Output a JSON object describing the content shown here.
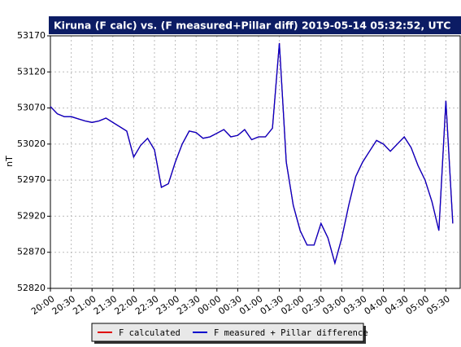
{
  "chart_data": {
    "type": "line",
    "title": "Kiruna (F calc) vs. (F measured+Pillar diff) 2019-05-14 05:32:52, UTC",
    "y_label": "nT",
    "categories": [
      "20:00",
      null,
      null,
      "20:30",
      null,
      null,
      "21:00",
      null,
      null,
      "21:30",
      null,
      null,
      "22:00",
      null,
      null,
      "22:30",
      null,
      null,
      "23:00",
      null,
      null,
      "23:30",
      null,
      null,
      "00:00",
      null,
      null,
      "00:30",
      null,
      null,
      "01:00",
      null,
      null,
      "01:30",
      null,
      null,
      "02:00",
      null,
      null,
      "02:30",
      null,
      null,
      "03:00",
      null,
      null,
      "03:30",
      null,
      null,
      "04:00",
      null,
      null,
      "04:30",
      null,
      null,
      "05:00",
      null,
      null,
      "05:30",
      null
    ],
    "series": [
      {
        "name": "F calculated",
        "color": "#e00000",
        "values": [
          53072,
          53062,
          53058,
          53058,
          53055,
          53052,
          53050,
          53052,
          53056,
          53050,
          53044,
          53038,
          53002,
          53018,
          53028,
          53012,
          52960,
          52965,
          52995,
          53020,
          53038,
          53036,
          53028,
          53030,
          53035,
          53040,
          53030,
          53032,
          53040,
          53026,
          53030,
          53030,
          53042,
          53160,
          52995,
          52935,
          52900,
          52880,
          52880,
          52910,
          52890,
          52855,
          52890,
          52935,
          52975,
          52995,
          53010,
          53025,
          53020,
          53010,
          53020,
          53030,
          53015,
          52990,
          52970,
          52940,
          52900,
          53080,
          52910
        ]
      },
      {
        "name": "F measured + Pillar difference",
        "color": "#0000cc",
        "values": [
          53072,
          53062,
          53058,
          53058,
          53055,
          53052,
          53050,
          53052,
          53056,
          53050,
          53044,
          53038,
          53002,
          53018,
          53028,
          53012,
          52960,
          52965,
          52995,
          53020,
          53038,
          53036,
          53028,
          53030,
          53035,
          53040,
          53030,
          53032,
          53040,
          53026,
          53030,
          53030,
          53042,
          53160,
          52995,
          52935,
          52900,
          52880,
          52880,
          52910,
          52890,
          52855,
          52890,
          52935,
          52975,
          52995,
          53010,
          53025,
          53020,
          53010,
          53020,
          53030,
          53015,
          52990,
          52970,
          52940,
          52900,
          53080,
          52910
        ]
      }
    ],
    "ylim": [
      52820,
      53170
    ],
    "yticks": [
      52820,
      52870,
      52920,
      52970,
      53020,
      53070,
      53120,
      53170
    ],
    "grid": true
  }
}
